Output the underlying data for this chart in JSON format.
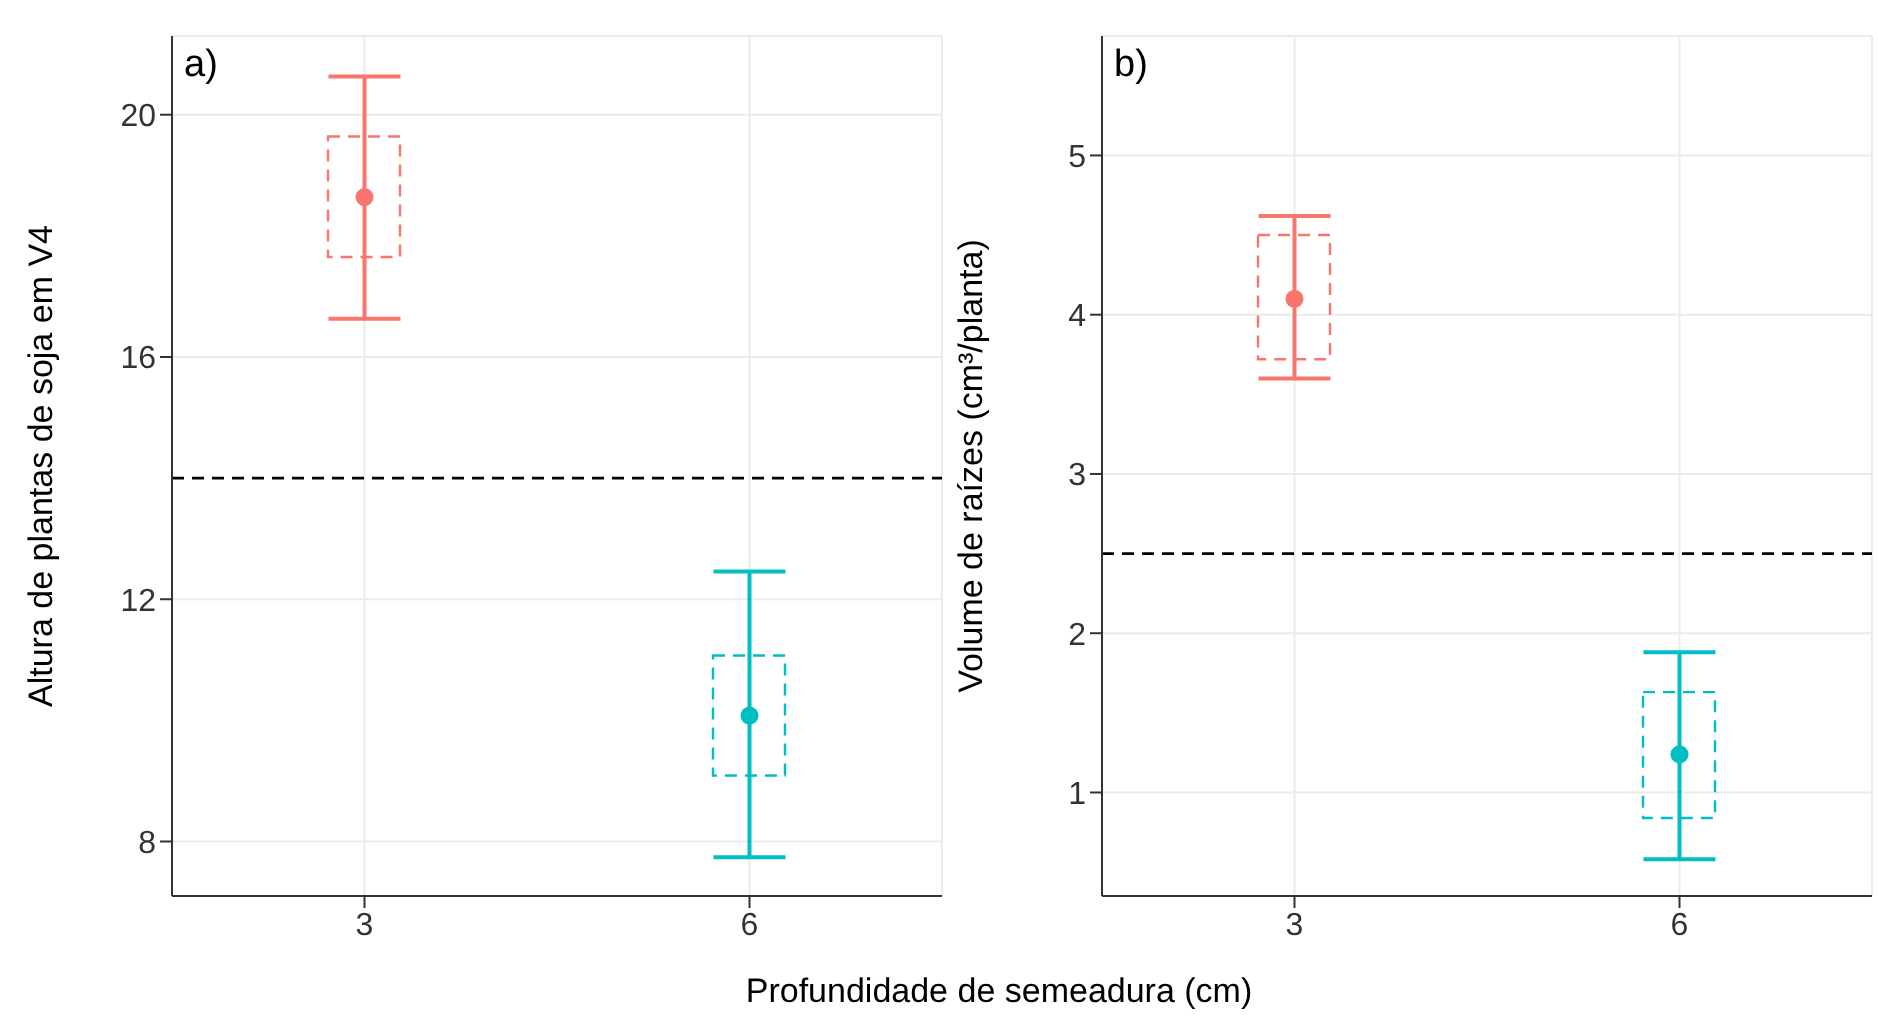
{
  "chart_data": [
    {
      "type": "scatter",
      "xlabel": "Profundidade de semeadura (cm)",
      "ylabel": "Altura de plantas de soja em V4",
      "annotations": [
        "a)"
      ],
      "categories": [
        "3",
        "6"
      ],
      "ylim": [
        7.1,
        21.3
      ],
      "yticks": [
        8,
        12,
        16,
        20
      ],
      "grid": true,
      "legend": false,
      "series": [
        {
          "type": "bar",
          "base": [
            17.65,
            9.09
          ],
          "values": [
            1.99,
            1.98
          ],
          "colors": [
            "#f8766d",
            "#00bfc4"
          ],
          "line_style": "dashed"
        },
        {
          "values": [
            18.64,
            10.08
          ],
          "errors": [
            [
              16.63,
              20.63
            ],
            [
              7.74,
              12.46
            ]
          ],
          "colors": [
            "#f8766d",
            "#00bfc4"
          ],
          "marker": "circle"
        }
      ],
      "ref_lines": [
        {
          "axis": "y",
          "value": 14,
          "color": "#000000",
          "line_style": "dashed"
        }
      ]
    },
    {
      "type": "scatter",
      "ylabel": "Volume de raízes (cm³/planta)",
      "annotations": [
        "b)"
      ],
      "categories": [
        "3",
        "6"
      ],
      "ylim": [
        0.35,
        5.75
      ],
      "yticks": [
        1,
        2,
        3,
        4,
        5
      ],
      "grid": true,
      "legend": false,
      "series": [
        {
          "type": "bar",
          "base": [
            3.72,
            0.84
          ],
          "values": [
            0.78,
            0.79
          ],
          "colors": [
            "#f8766d",
            "#00bfc4"
          ],
          "line_style": "dashed"
        },
        {
          "values": [
            4.1,
            1.24
          ],
          "errors": [
            [
              3.6,
              4.62
            ],
            [
              0.58,
              1.88
            ]
          ],
          "colors": [
            "#f8766d",
            "#00bfc4"
          ],
          "marker": "circle"
        }
      ],
      "ref_lines": [
        {
          "axis": "y",
          "value": 2.5,
          "color": "#000000",
          "line_style": "dashed"
        }
      ]
    }
  ]
}
